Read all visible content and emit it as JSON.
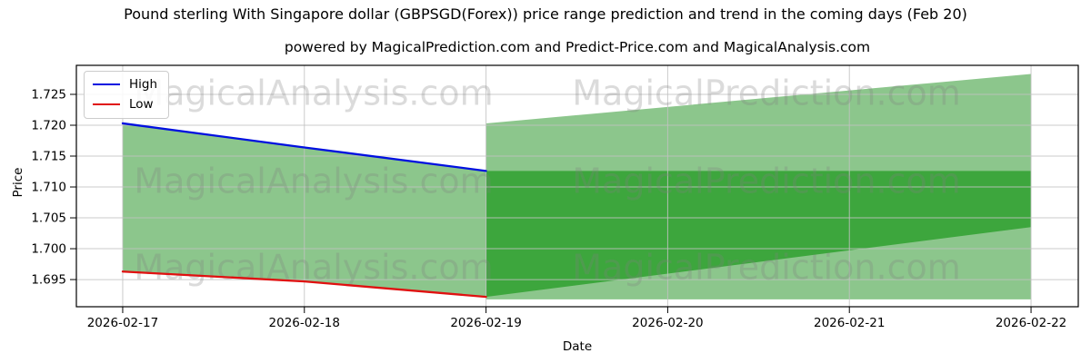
{
  "header": {
    "title": "Pound sterling With Singapore dollar (GBPSGD(Forex)) price range prediction and trend in the coming days (Feb 20)",
    "subtitle": "powered by MagicalPrediction.com and Predict-Price.com and MagicalAnalysis.com"
  },
  "legend": {
    "position": "upper left",
    "items": [
      {
        "label": "High",
        "color": "#0010e0"
      },
      {
        "label": "Low",
        "color": "#e01010"
      }
    ]
  },
  "axes": {
    "y_label": "Price",
    "x_label": "Date",
    "y_ticks": [
      "1.695",
      "1.700",
      "1.705",
      "1.710",
      "1.715",
      "1.720",
      "1.725"
    ],
    "x_ticks": [
      "2026-02-17",
      "2026-02-18",
      "2026-02-19",
      "2026-02-20",
      "2026-02-21",
      "2026-02-22"
    ]
  },
  "watermark": {
    "left_text": "MagicalAnalysis.com",
    "right_text": "MagicalPrediction.com",
    "color": "#808080",
    "opacity": 0.28
  },
  "chart_data": {
    "type": "line",
    "title": "Pound sterling With Singapore dollar (GBPSGD(Forex)) price range prediction and trend in the coming days (Feb 20)",
    "xlabel": "Date",
    "ylabel": "Price",
    "x_dates": [
      "2026-02-17",
      "2026-02-18",
      "2026-02-19",
      "2026-02-20",
      "2026-02-21",
      "2026-02-22"
    ],
    "observed": {
      "dates": [
        "2026-02-17",
        "2026-02-18",
        "2026-02-19"
      ],
      "series": [
        {
          "name": "High",
          "color": "#0010e0",
          "values": [
            1.7203,
            1.7164,
            1.7126
          ]
        },
        {
          "name": "Low",
          "color": "#e01010",
          "values": [
            1.6963,
            1.6947,
            1.6922
          ]
        }
      ],
      "range_fill_color": "#8cc68c"
    },
    "forecast": {
      "start_date": "2026-02-19",
      "end_date": "2026-02-22",
      "outer_band": {
        "top": [
          1.7203,
          1.7283
        ],
        "bottom": [
          1.6918,
          1.6918
        ],
        "color": "#8cc68c"
      },
      "inner_band": {
        "top": [
          1.7126,
          1.7126
        ],
        "bottom": [
          1.6922,
          1.7035
        ],
        "color": "#3da63d"
      }
    },
    "ylim": [
      1.6906,
      1.7297
    ],
    "xlim_days": [
      -0.255,
      5.26
    ],
    "grid": true,
    "grid_color": "#c2c2c2",
    "legend_position": "upper left"
  }
}
